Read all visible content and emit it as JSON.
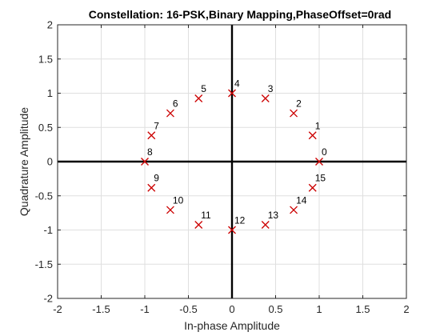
{
  "chart_data": {
    "type": "scatter",
    "title": "Constellation: 16-PSK,Binary Mapping,PhaseOffset=0rad",
    "xlabel": "In-phase Amplitude",
    "ylabel": "Quadrature Amplitude",
    "xlim": [
      -2,
      2
    ],
    "ylim": [
      -2,
      2
    ],
    "xticks": [
      "-2",
      "-1.5",
      "-1",
      "-0.5",
      "0",
      "0.5",
      "1",
      "1.5",
      "2"
    ],
    "yticks": [
      "-2",
      "-1.5",
      "-1",
      "-0.5",
      "0",
      "0.5",
      "1",
      "1.5",
      "2"
    ],
    "grid": true,
    "marker": "x",
    "marker_color": "#cc0000",
    "points": [
      {
        "label": "0",
        "x": 1.0,
        "y": 0.0
      },
      {
        "label": "1",
        "x": 0.924,
        "y": 0.383
      },
      {
        "label": "2",
        "x": 0.707,
        "y": 0.707
      },
      {
        "label": "3",
        "x": 0.383,
        "y": 0.924
      },
      {
        "label": "4",
        "x": 0.0,
        "y": 1.0
      },
      {
        "label": "5",
        "x": -0.383,
        "y": 0.924
      },
      {
        "label": "6",
        "x": -0.707,
        "y": 0.707
      },
      {
        "label": "7",
        "x": -0.924,
        "y": 0.383
      },
      {
        "label": "8",
        "x": -1.0,
        "y": 0.0
      },
      {
        "label": "9",
        "x": -0.924,
        "y": -0.383
      },
      {
        "label": "10",
        "x": -0.707,
        "y": -0.707
      },
      {
        "label": "11",
        "x": -0.383,
        "y": -0.924
      },
      {
        "label": "12",
        "x": 0.0,
        "y": -1.0
      },
      {
        "label": "13",
        "x": 0.383,
        "y": -0.924
      },
      {
        "label": "14",
        "x": 0.707,
        "y": -0.707
      },
      {
        "label": "15",
        "x": 0.924,
        "y": -0.383
      }
    ]
  }
}
